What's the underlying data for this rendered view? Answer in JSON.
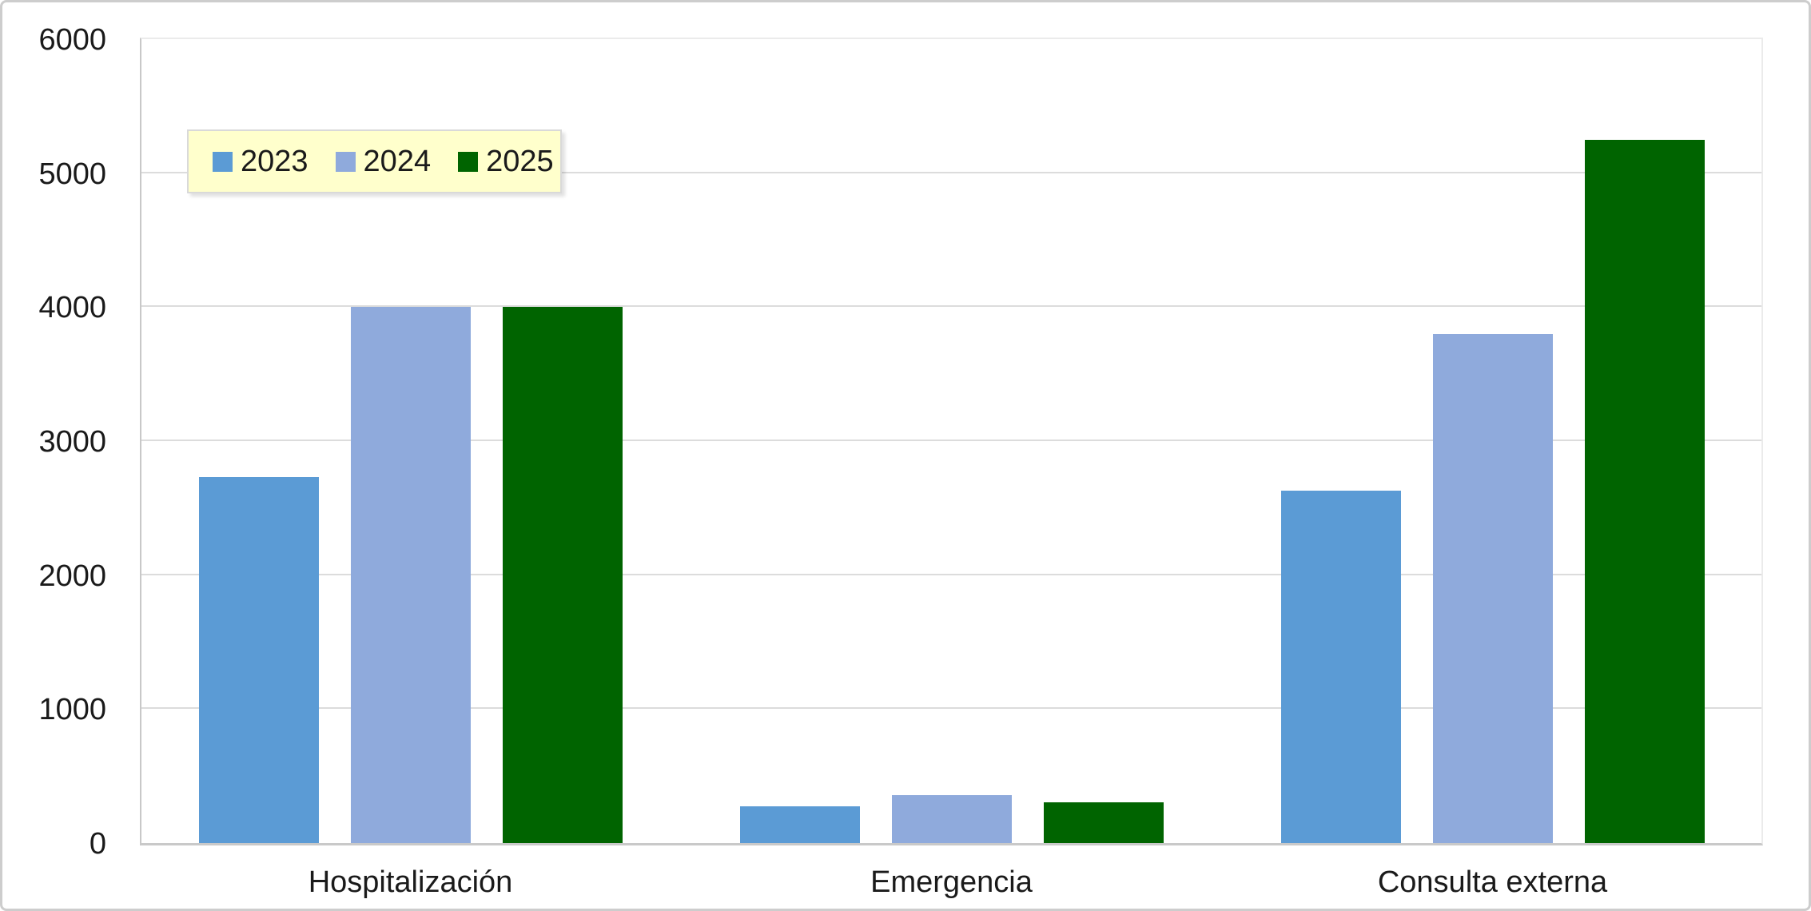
{
  "chart_data": {
    "type": "bar",
    "title": "",
    "categories": [
      "Hospitalización",
      "Emergencia",
      "Consulta externa"
    ],
    "series": [
      {
        "name": "2023",
        "color": "#5B9BD5",
        "values": [
          2730,
          275,
          2630
        ]
      },
      {
        "name": "2024",
        "color": "#8FAADC",
        "values": [
          4000,
          355,
          3800
        ]
      },
      {
        "name": "2025",
        "color": "#006400",
        "values": [
          4000,
          305,
          5250
        ]
      }
    ],
    "ylim": [
      0,
      6000
    ],
    "yticks": [
      0,
      1000,
      2000,
      3000,
      4000,
      5000,
      6000
    ],
    "grid": true,
    "legend_position": "top-left-inside",
    "colors": {
      "legend_background": "#FFFFCC",
      "legend_border": "#D9D9D9",
      "gridline": "#DCDCDC",
      "axis_line": "#C9C9C9",
      "text": "#1A1A1A",
      "chart_background": "#FFFFFF",
      "frame_border": "#CDCDCD"
    }
  }
}
